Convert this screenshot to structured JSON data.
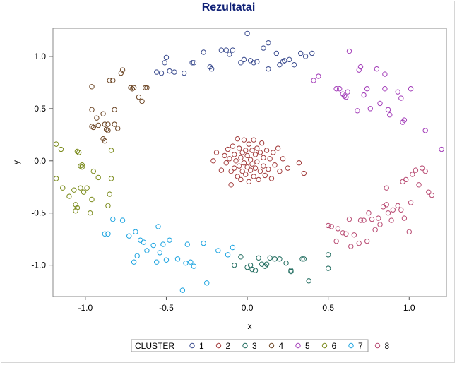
{
  "chart_data": {
    "type": "scatter",
    "title": "Rezultatai",
    "xlabel": "x",
    "ylabel": "y",
    "xlim": [
      -1.2,
      1.23
    ],
    "ylim": [
      -1.3,
      1.27
    ],
    "x_ticks": [
      -1.0,
      -0.5,
      0.0,
      0.5,
      1.0
    ],
    "x_tick_labels": [
      "-1.0",
      "-0.5",
      "0.0",
      "0.5",
      "1.0"
    ],
    "y_ticks": [
      -1.0,
      -0.5,
      0.0,
      0.5,
      1.0
    ],
    "y_tick_labels": [
      "-1.0",
      "-0.5",
      "0.0",
      "0.5",
      "1.0"
    ],
    "grid": false,
    "marker": "open-circle",
    "legend": {
      "title": "CLUSTER",
      "placement": "bottom"
    },
    "series": [
      {
        "name": "1",
        "color": "#3b4c8f",
        "points": [
          [
            -0.56,
            0.85
          ],
          [
            -0.51,
            0.94
          ],
          [
            -0.5,
            0.99
          ],
          [
            -0.48,
            0.86
          ],
          [
            -0.53,
            0.84
          ],
          [
            -0.45,
            0.85
          ],
          [
            -0.39,
            0.84
          ],
          [
            -0.34,
            0.94
          ],
          [
            -0.33,
            0.94
          ],
          [
            -0.27,
            1.04
          ],
          [
            -0.23,
            0.9
          ],
          [
            -0.22,
            0.88
          ],
          [
            -0.16,
            1.06
          ],
          [
            -0.13,
            1.06
          ],
          [
            -0.11,
            1.02
          ],
          [
            -0.09,
            1.06
          ],
          [
            -0.04,
            0.94
          ],
          [
            -0.02,
            0.97
          ],
          [
            0.0,
            1.22
          ],
          [
            0.02,
            0.96
          ],
          [
            0.04,
            0.94
          ],
          [
            0.06,
            0.95
          ],
          [
            0.1,
            1.08
          ],
          [
            0.13,
            1.13
          ],
          [
            0.13,
            0.88
          ],
          [
            0.18,
            1.03
          ],
          [
            0.2,
            0.92
          ],
          [
            0.22,
            0.95
          ],
          [
            0.23,
            0.96
          ],
          [
            0.26,
            0.97
          ],
          [
            0.29,
            0.92
          ],
          [
            0.33,
            1.03
          ],
          [
            0.36,
            1.0
          ],
          [
            0.4,
            1.03
          ]
        ]
      },
      {
        "name": "2",
        "color": "#a23b3b",
        "points": [
          [
            -0.19,
            0.08
          ],
          [
            -0.16,
            -0.09
          ],
          [
            -0.14,
            0.05
          ],
          [
            -0.13,
            -0.02
          ],
          [
            -0.12,
            0.11
          ],
          [
            -0.11,
            0.02
          ],
          [
            -0.1,
            -0.1
          ],
          [
            -0.1,
            -0.23
          ],
          [
            -0.09,
            0.14
          ],
          [
            -0.08,
            0.06
          ],
          [
            -0.08,
            -0.07
          ],
          [
            -0.07,
            0.0
          ],
          [
            -0.06,
            0.21
          ],
          [
            -0.06,
            -0.15
          ],
          [
            -0.05,
            0.12
          ],
          [
            -0.05,
            -0.05
          ],
          [
            -0.04,
            0.03
          ],
          [
            -0.04,
            -0.18
          ],
          [
            -0.03,
            0.08
          ],
          [
            -0.03,
            -0.1
          ],
          [
            -0.02,
            0.2
          ],
          [
            -0.02,
            -0.02
          ],
          [
            -0.01,
            0.1
          ],
          [
            -0.01,
            -0.13
          ],
          [
            0.0,
            0.05
          ],
          [
            0.0,
            -0.06
          ],
          [
            0.01,
            0.16
          ],
          [
            0.01,
            -0.2
          ],
          [
            0.02,
            0.01
          ],
          [
            0.02,
            -0.09
          ],
          [
            0.03,
            0.1
          ],
          [
            0.03,
            -0.03
          ],
          [
            0.04,
            0.2
          ],
          [
            0.04,
            -0.15
          ],
          [
            0.05,
            0.06
          ],
          [
            0.05,
            -0.07
          ],
          [
            0.06,
            0.12
          ],
          [
            0.06,
            -0.01
          ],
          [
            0.07,
            -0.18
          ],
          [
            0.08,
            0.08
          ],
          [
            0.08,
            -0.1
          ],
          [
            0.09,
            0.17
          ],
          [
            0.1,
            0.03
          ],
          [
            0.1,
            -0.05
          ],
          [
            0.11,
            -0.14
          ],
          [
            0.12,
            0.1
          ],
          [
            0.13,
            -0.08
          ],
          [
            0.14,
            0.02
          ],
          [
            0.15,
            -0.17
          ],
          [
            0.16,
            0.08
          ],
          [
            0.17,
            -0.04
          ],
          [
            0.19,
            0.12
          ],
          [
            0.2,
            -0.1
          ],
          [
            0.22,
            0.02
          ],
          [
            0.25,
            -0.07
          ],
          [
            0.32,
            -0.02
          ],
          [
            0.35,
            -0.12
          ],
          [
            -0.21,
            0.0
          ]
        ]
      },
      {
        "name": "3",
        "color": "#1f6b5e",
        "points": [
          [
            -0.08,
            -1.0
          ],
          [
            -0.04,
            -0.92
          ],
          [
            0.0,
            -1.02
          ],
          [
            0.02,
            -1.0
          ],
          [
            0.03,
            -1.04
          ],
          [
            0.05,
            -1.05
          ],
          [
            0.07,
            -0.93
          ],
          [
            0.09,
            -0.99
          ],
          [
            0.11,
            -1.01
          ],
          [
            0.12,
            -0.99
          ],
          [
            0.14,
            -0.93
          ],
          [
            0.17,
            -0.94
          ],
          [
            0.2,
            -0.94
          ],
          [
            0.24,
            -0.98
          ],
          [
            0.27,
            -1.05
          ],
          [
            0.27,
            -1.06
          ],
          [
            0.34,
            -0.94
          ],
          [
            0.35,
            -0.94
          ],
          [
            0.38,
            -1.15
          ],
          [
            0.5,
            -0.9
          ],
          [
            0.5,
            -1.03
          ]
        ]
      },
      {
        "name": "4",
        "color": "#6b4423",
        "points": [
          [
            -0.96,
            0.71
          ],
          [
            -0.96,
            0.49
          ],
          [
            -0.96,
            0.33
          ],
          [
            -0.95,
            0.32
          ],
          [
            -0.93,
            0.41
          ],
          [
            -0.92,
            0.34
          ],
          [
            -0.89,
            0.45
          ],
          [
            -0.89,
            0.21
          ],
          [
            -0.88,
            0.19
          ],
          [
            -0.88,
            0.35
          ],
          [
            -0.87,
            0.3
          ],
          [
            -0.86,
            0.29
          ],
          [
            -0.86,
            0.35
          ],
          [
            -0.85,
            0.77
          ],
          [
            -0.83,
            0.77
          ],
          [
            -0.82,
            0.35
          ],
          [
            -0.82,
            0.49
          ],
          [
            -0.8,
            0.31
          ],
          [
            -0.78,
            0.84
          ],
          [
            -0.77,
            0.87
          ],
          [
            -0.72,
            0.7
          ],
          [
            -0.71,
            0.69
          ],
          [
            -0.7,
            0.7
          ],
          [
            -0.67,
            0.61
          ],
          [
            -0.65,
            0.57
          ],
          [
            -0.63,
            0.7
          ],
          [
            -0.62,
            0.7
          ]
        ]
      },
      {
        "name": "5",
        "color": "#a23bb8",
        "points": [
          [
            0.41,
            0.77
          ],
          [
            0.44,
            0.81
          ],
          [
            0.55,
            0.69
          ],
          [
            0.57,
            0.69
          ],
          [
            0.59,
            0.64
          ],
          [
            0.6,
            0.62
          ],
          [
            0.61,
            0.61
          ],
          [
            0.62,
            0.66
          ],
          [
            0.63,
            1.05
          ],
          [
            0.68,
            0.48
          ],
          [
            0.69,
            0.87
          ],
          [
            0.7,
            0.9
          ],
          [
            0.72,
            0.63
          ],
          [
            0.74,
            0.69
          ],
          [
            0.76,
            0.5
          ],
          [
            0.8,
            0.88
          ],
          [
            0.82,
            0.55
          ],
          [
            0.85,
            0.83
          ],
          [
            0.85,
            0.69
          ],
          [
            0.87,
            0.49
          ],
          [
            0.88,
            0.44
          ],
          [
            0.93,
            0.66
          ],
          [
            0.95,
            0.6
          ],
          [
            0.96,
            0.37
          ],
          [
            0.97,
            0.39
          ],
          [
            1.01,
            0.69
          ],
          [
            1.1,
            0.29
          ],
          [
            1.2,
            0.11
          ]
        ]
      },
      {
        "name": "6",
        "color": "#7a8a1a",
        "points": [
          [
            -1.18,
            0.16
          ],
          [
            -1.18,
            -0.17
          ],
          [
            -1.15,
            0.11
          ],
          [
            -1.14,
            -0.26
          ],
          [
            -1.1,
            -0.34
          ],
          [
            -1.07,
            -0.28
          ],
          [
            -1.06,
            -0.42
          ],
          [
            -1.06,
            -0.48
          ],
          [
            -1.05,
            -0.45
          ],
          [
            -1.05,
            0.09
          ],
          [
            -1.04,
            0.08
          ],
          [
            -1.03,
            -0.05
          ],
          [
            -1.03,
            -0.26
          ],
          [
            -1.02,
            -0.06
          ],
          [
            -1.02,
            -0.04
          ],
          [
            -1.01,
            -0.3
          ],
          [
            -0.99,
            -0.26
          ],
          [
            -0.97,
            -0.5
          ],
          [
            -0.96,
            -0.37
          ],
          [
            -0.95,
            -0.1
          ],
          [
            -0.92,
            -0.16
          ],
          [
            -0.86,
            -0.43
          ],
          [
            -0.85,
            -0.32
          ],
          [
            -0.84,
            -0.17
          ],
          [
            -0.84,
            0.1
          ]
        ]
      },
      {
        "name": "7",
        "color": "#1aa3e0",
        "points": [
          [
            -0.88,
            -0.7
          ],
          [
            -0.86,
            -0.7
          ],
          [
            -0.83,
            -0.56
          ],
          [
            -0.77,
            -0.57
          ],
          [
            -0.73,
            -0.72
          ],
          [
            -0.7,
            -0.97
          ],
          [
            -0.69,
            -0.68
          ],
          [
            -0.68,
            -0.91
          ],
          [
            -0.66,
            -0.76
          ],
          [
            -0.64,
            -0.78
          ],
          [
            -0.62,
            -0.86
          ],
          [
            -0.58,
            -0.81
          ],
          [
            -0.56,
            -0.97
          ],
          [
            -0.55,
            -0.63
          ],
          [
            -0.54,
            -0.88
          ],
          [
            -0.52,
            -0.8
          ],
          [
            -0.5,
            -0.95
          ],
          [
            -0.48,
            -0.76
          ],
          [
            -0.43,
            -0.94
          ],
          [
            -0.4,
            -1.24
          ],
          [
            -0.38,
            -0.98
          ],
          [
            -0.37,
            -0.8
          ],
          [
            -0.35,
            -0.97
          ],
          [
            -0.33,
            -1.01
          ],
          [
            -0.27,
            -0.79
          ],
          [
            -0.25,
            -1.17
          ],
          [
            -0.18,
            -0.86
          ],
          [
            -0.12,
            -0.9
          ],
          [
            -0.09,
            -0.83
          ]
        ]
      },
      {
        "name": "8",
        "color": "#b84a72",
        "points": [
          [
            0.5,
            -0.62
          ],
          [
            0.52,
            -0.63
          ],
          [
            0.55,
            -0.77
          ],
          [
            0.56,
            -0.65
          ],
          [
            0.59,
            -0.69
          ],
          [
            0.61,
            -0.7
          ],
          [
            0.63,
            -0.56
          ],
          [
            0.64,
            -0.82
          ],
          [
            0.66,
            -0.71
          ],
          [
            0.69,
            -0.79
          ],
          [
            0.7,
            -0.57
          ],
          [
            0.72,
            -0.57
          ],
          [
            0.74,
            -0.77
          ],
          [
            0.75,
            -0.5
          ],
          [
            0.77,
            -0.56
          ],
          [
            0.79,
            -0.66
          ],
          [
            0.81,
            -0.55
          ],
          [
            0.82,
            -0.61
          ],
          [
            0.84,
            -0.44
          ],
          [
            0.86,
            -0.26
          ],
          [
            0.86,
            -0.42
          ],
          [
            0.87,
            -0.5
          ],
          [
            0.89,
            -0.57
          ],
          [
            0.9,
            -0.47
          ],
          [
            0.93,
            -0.43
          ],
          [
            0.95,
            -0.47
          ],
          [
            0.96,
            -0.2
          ],
          [
            0.98,
            -0.18
          ],
          [
            1.01,
            -0.4
          ],
          [
            1.02,
            -0.13
          ],
          [
            1.04,
            -0.09
          ],
          [
            1.06,
            -0.23
          ],
          [
            1.08,
            -0.07
          ],
          [
            1.1,
            -0.1
          ],
          [
            1.12,
            -0.3
          ],
          [
            1.14,
            -0.33
          ],
          [
            0.97,
            -0.55
          ],
          [
            1.0,
            -0.68
          ]
        ]
      }
    ]
  }
}
